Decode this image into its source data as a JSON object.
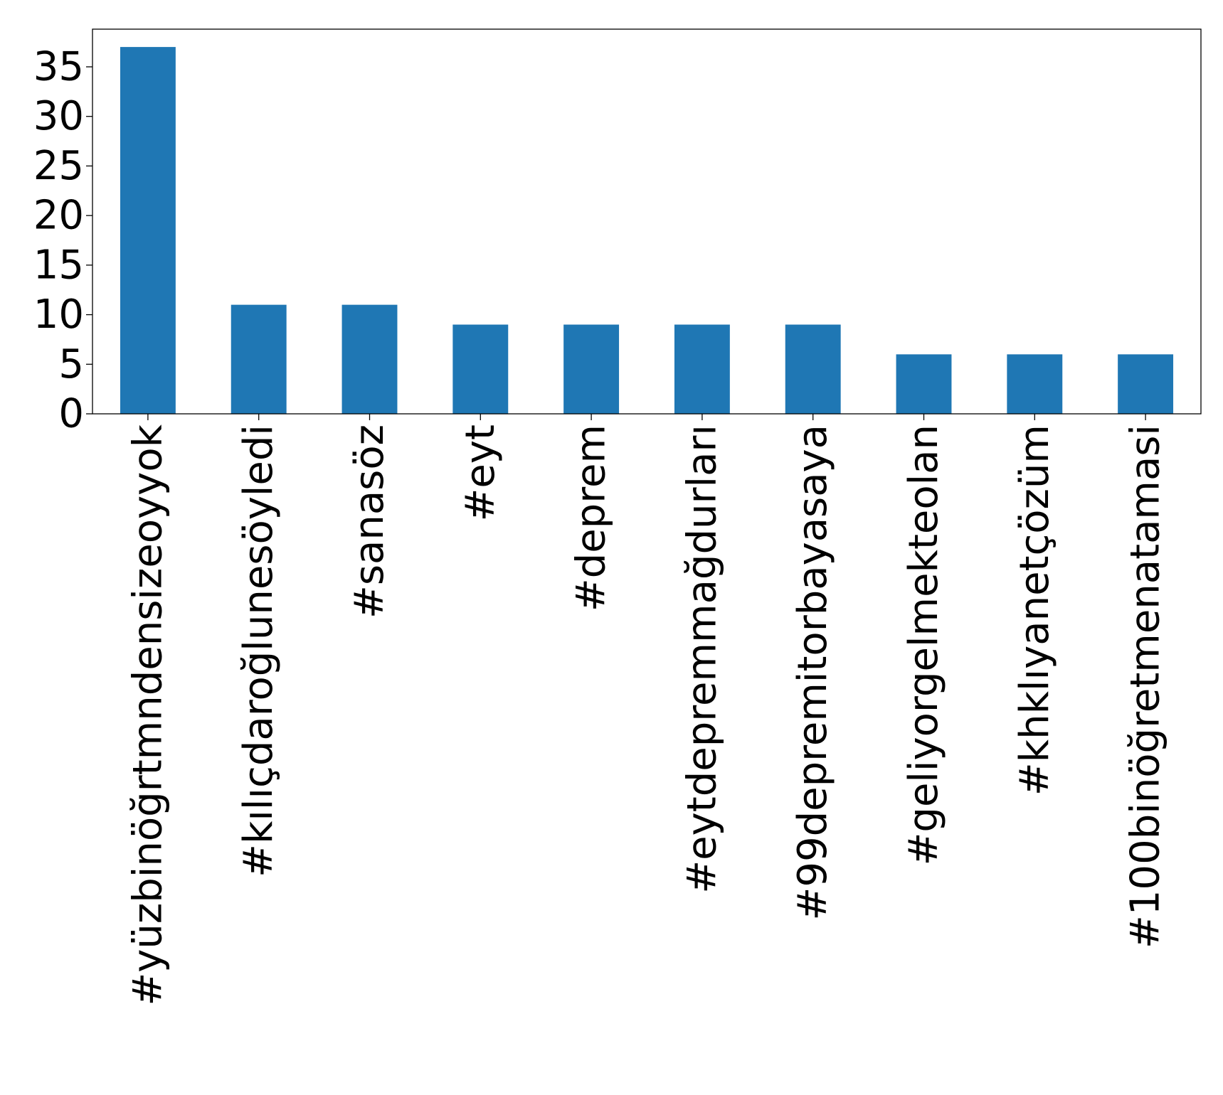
{
  "chart_data": {
    "type": "bar",
    "title": "",
    "xlabel": "",
    "ylabel": "",
    "categories": [
      "#yüzbinöğrtmndensizeoyyok",
      "#kılıçdaroğlunesöyledi",
      "#sanasöz",
      "#eyt",
      "#deprem",
      "#eytdepremmağdurları",
      "#99depremitorbayasaya",
      "#geliyorgelmekteolan",
      "#khklıyanetçözüm",
      "#100binöğretmenatamasi"
    ],
    "values": [
      37,
      11,
      11,
      9,
      9,
      9,
      9,
      6,
      6,
      6
    ],
    "ylim": [
      0,
      38.8
    ],
    "yticks": [
      "0",
      "5",
      "10",
      "15",
      "20",
      "25",
      "30",
      "35"
    ],
    "grid": false,
    "bar_color": "#1f77b4",
    "axis_color": "#000000"
  }
}
